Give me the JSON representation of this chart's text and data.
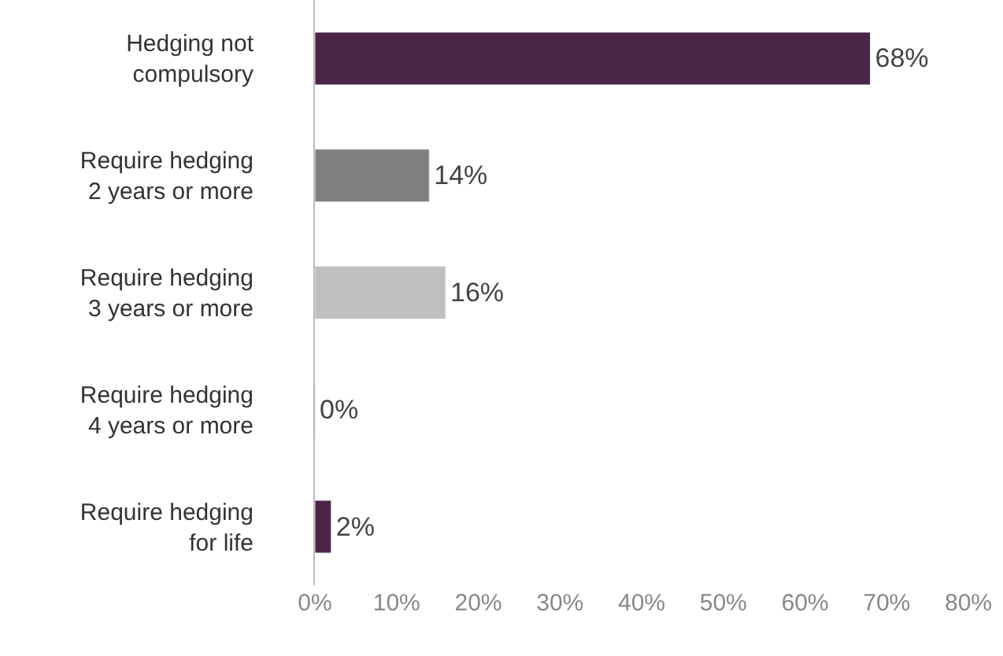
{
  "chart_data": {
    "type": "bar",
    "orientation": "horizontal",
    "categories": [
      "Hedging not\ncompulsory",
      "Require hedging\n2 years or more",
      "Require hedging\n3 years or more",
      "Require hedging\n4 years or more",
      "Require hedging\nfor life"
    ],
    "values": [
      68,
      14,
      16,
      0,
      2
    ],
    "colors": [
      "#4b2548",
      "#7f7f7f",
      "#bfbfbf",
      null,
      "#4b2548"
    ],
    "value_labels": [
      "68%",
      "14%",
      "16%",
      "0%",
      "2%"
    ],
    "xlim": [
      0,
      80
    ],
    "xticks": [
      {
        "value": 0,
        "label": "0%"
      },
      {
        "value": 10,
        "label": "10%"
      },
      {
        "value": 20,
        "label": "20%"
      },
      {
        "value": 30,
        "label": "30%"
      },
      {
        "value": 40,
        "label": "40%"
      },
      {
        "value": 50,
        "label": "50%"
      },
      {
        "value": 60,
        "label": "60%"
      },
      {
        "value": 70,
        "label": "70%"
      },
      {
        "value": 80,
        "label": "80%"
      }
    ],
    "legend": false
  }
}
